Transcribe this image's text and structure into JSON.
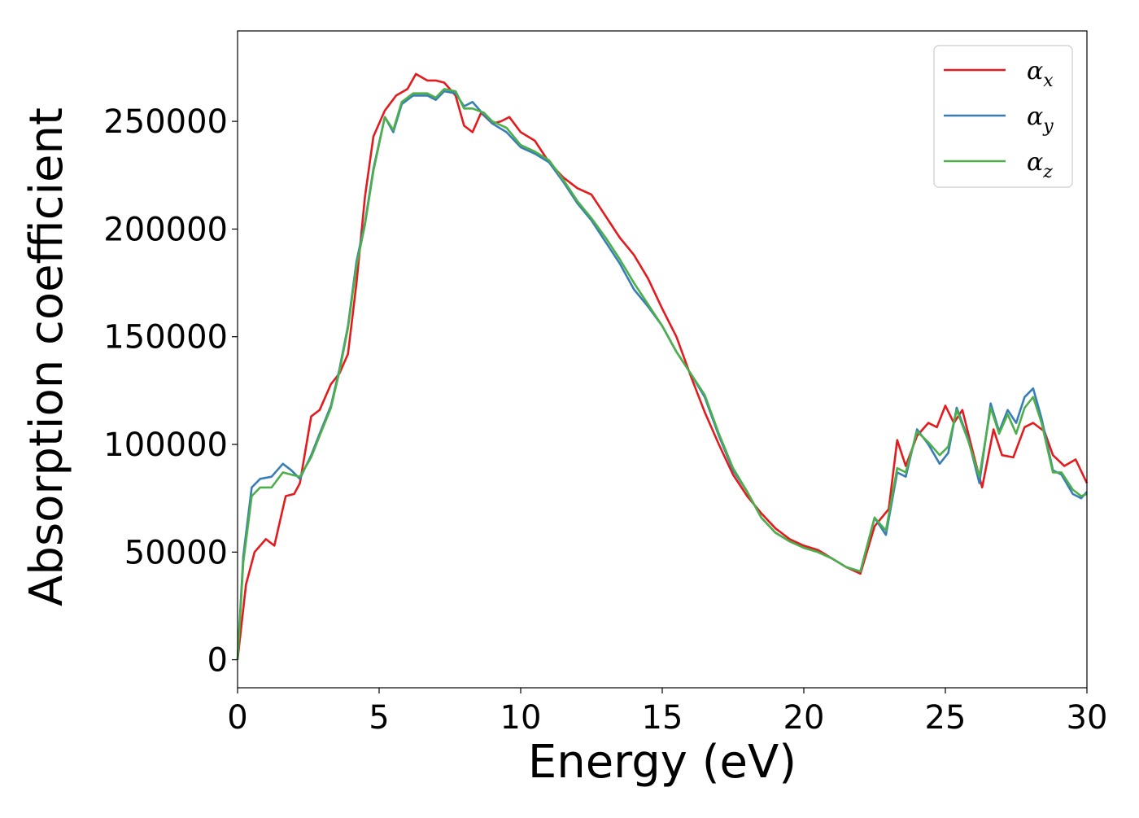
{
  "chart_data": {
    "type": "line",
    "xlabel": "Energy (eV)",
    "ylabel": "Absorption coefficient",
    "xlim": [
      0,
      30
    ],
    "ylim": [
      -13000,
      292000
    ],
    "xticks": [
      0,
      5,
      10,
      15,
      20,
      25,
      30
    ],
    "yticks": [
      0,
      50000,
      100000,
      150000,
      200000,
      250000
    ],
    "grid": false,
    "legend_position": "top-right",
    "series": [
      {
        "name": "αx",
        "symbol": "α",
        "subscript": "x",
        "color": "#e41a1c",
        "points": [
          [
            0,
            0
          ],
          [
            0.3,
            35000
          ],
          [
            0.6,
            50000
          ],
          [
            1.0,
            56000
          ],
          [
            1.3,
            53000
          ],
          [
            1.7,
            76000
          ],
          [
            2.0,
            77000
          ],
          [
            2.2,
            82000
          ],
          [
            2.6,
            113000
          ],
          [
            2.9,
            116000
          ],
          [
            3.3,
            128000
          ],
          [
            3.6,
            133000
          ],
          [
            3.9,
            142000
          ],
          [
            4.2,
            175000
          ],
          [
            4.5,
            215000
          ],
          [
            4.8,
            243000
          ],
          [
            5.2,
            255000
          ],
          [
            5.6,
            262000
          ],
          [
            6.0,
            265000
          ],
          [
            6.3,
            272000
          ],
          [
            6.7,
            269000
          ],
          [
            7.0,
            269000
          ],
          [
            7.3,
            268000
          ],
          [
            7.7,
            262000
          ],
          [
            8.0,
            248000
          ],
          [
            8.3,
            245000
          ],
          [
            8.6,
            254000
          ],
          [
            9.0,
            249000
          ],
          [
            9.3,
            250000
          ],
          [
            9.6,
            252000
          ],
          [
            10.0,
            245000
          ],
          [
            10.5,
            241000
          ],
          [
            11.0,
            231000
          ],
          [
            11.5,
            224000
          ],
          [
            12.0,
            219000
          ],
          [
            12.5,
            216000
          ],
          [
            13.0,
            206000
          ],
          [
            13.5,
            196000
          ],
          [
            14.0,
            188000
          ],
          [
            14.5,
            177000
          ],
          [
            15.0,
            163000
          ],
          [
            15.5,
            150000
          ],
          [
            16.0,
            132000
          ],
          [
            16.5,
            115000
          ],
          [
            17.0,
            100000
          ],
          [
            17.5,
            86000
          ],
          [
            18.0,
            76000
          ],
          [
            18.5,
            68000
          ],
          [
            19.0,
            61000
          ],
          [
            19.5,
            56000
          ],
          [
            20.0,
            53000
          ],
          [
            20.5,
            51000
          ],
          [
            21.0,
            47000
          ],
          [
            21.5,
            43000
          ],
          [
            22.0,
            40000
          ],
          [
            22.5,
            62000
          ],
          [
            23.0,
            70000
          ],
          [
            23.3,
            102000
          ],
          [
            23.6,
            90000
          ],
          [
            24.0,
            104000
          ],
          [
            24.4,
            110000
          ],
          [
            24.7,
            108000
          ],
          [
            25.0,
            118000
          ],
          [
            25.3,
            110000
          ],
          [
            25.6,
            116000
          ],
          [
            26.0,
            95000
          ],
          [
            26.3,
            80000
          ],
          [
            26.7,
            107000
          ],
          [
            27.0,
            95000
          ],
          [
            27.4,
            94000
          ],
          [
            27.8,
            108000
          ],
          [
            28.1,
            110000
          ],
          [
            28.5,
            106000
          ],
          [
            28.8,
            95000
          ],
          [
            29.2,
            90000
          ],
          [
            29.6,
            93000
          ],
          [
            30.0,
            82000
          ]
        ]
      },
      {
        "name": "αy",
        "symbol": "α",
        "subscript": "y",
        "color": "#377eb8",
        "points": [
          [
            0,
            0
          ],
          [
            0.2,
            48000
          ],
          [
            0.5,
            80000
          ],
          [
            0.8,
            84000
          ],
          [
            1.2,
            85000
          ],
          [
            1.6,
            91000
          ],
          [
            1.9,
            88000
          ],
          [
            2.2,
            84000
          ],
          [
            2.6,
            95000
          ],
          [
            2.9,
            105000
          ],
          [
            3.3,
            118000
          ],
          [
            3.6,
            135000
          ],
          [
            3.9,
            155000
          ],
          [
            4.2,
            185000
          ],
          [
            4.5,
            203000
          ],
          [
            4.8,
            228000
          ],
          [
            5.2,
            252000
          ],
          [
            5.5,
            245000
          ],
          [
            5.8,
            258000
          ],
          [
            6.2,
            262000
          ],
          [
            6.7,
            262000
          ],
          [
            7.0,
            260000
          ],
          [
            7.3,
            264000
          ],
          [
            7.7,
            263000
          ],
          [
            8.0,
            257000
          ],
          [
            8.3,
            259000
          ],
          [
            8.7,
            253000
          ],
          [
            9.0,
            249000
          ],
          [
            9.5,
            245000
          ],
          [
            10.0,
            238000
          ],
          [
            10.5,
            235000
          ],
          [
            11.0,
            231000
          ],
          [
            11.5,
            222000
          ],
          [
            12.0,
            212000
          ],
          [
            12.5,
            204000
          ],
          [
            13.0,
            194000
          ],
          [
            13.5,
            184000
          ],
          [
            14.0,
            172000
          ],
          [
            14.5,
            164000
          ],
          [
            15.0,
            155000
          ],
          [
            15.5,
            143000
          ],
          [
            16.0,
            133000
          ],
          [
            16.5,
            122000
          ],
          [
            17.0,
            104000
          ],
          [
            17.5,
            88000
          ],
          [
            18.0,
            78000
          ],
          [
            18.5,
            66000
          ],
          [
            19.0,
            59000
          ],
          [
            19.5,
            55000
          ],
          [
            20.0,
            52000
          ],
          [
            20.5,
            50000
          ],
          [
            21.0,
            47000
          ],
          [
            21.5,
            43000
          ],
          [
            22.0,
            41000
          ],
          [
            22.5,
            66000
          ],
          [
            22.9,
            58000
          ],
          [
            23.3,
            87000
          ],
          [
            23.6,
            85000
          ],
          [
            24.0,
            107000
          ],
          [
            24.4,
            100000
          ],
          [
            24.8,
            91000
          ],
          [
            25.1,
            96000
          ],
          [
            25.4,
            117000
          ],
          [
            25.8,
            103000
          ],
          [
            26.2,
            82000
          ],
          [
            26.6,
            119000
          ],
          [
            26.9,
            106000
          ],
          [
            27.2,
            116000
          ],
          [
            27.5,
            110000
          ],
          [
            27.8,
            122000
          ],
          [
            28.1,
            126000
          ],
          [
            28.4,
            112000
          ],
          [
            28.8,
            88000
          ],
          [
            29.1,
            86000
          ],
          [
            29.5,
            77000
          ],
          [
            29.8,
            75000
          ],
          [
            30.0,
            78000
          ]
        ]
      },
      {
        "name": "αz",
        "symbol": "α",
        "subscript": "z",
        "color": "#4daf4a",
        "points": [
          [
            0,
            0
          ],
          [
            0.2,
            45000
          ],
          [
            0.5,
            76000
          ],
          [
            0.8,
            80000
          ],
          [
            1.2,
            80000
          ],
          [
            1.6,
            87000
          ],
          [
            1.9,
            86000
          ],
          [
            2.2,
            85000
          ],
          [
            2.6,
            94000
          ],
          [
            2.9,
            104000
          ],
          [
            3.3,
            117000
          ],
          [
            3.6,
            134000
          ],
          [
            3.9,
            154000
          ],
          [
            4.2,
            183000
          ],
          [
            4.5,
            202000
          ],
          [
            4.8,
            227000
          ],
          [
            5.2,
            252000
          ],
          [
            5.5,
            246000
          ],
          [
            5.8,
            259000
          ],
          [
            6.2,
            263000
          ],
          [
            6.7,
            263000
          ],
          [
            7.0,
            261000
          ],
          [
            7.3,
            265000
          ],
          [
            7.7,
            264000
          ],
          [
            8.0,
            256000
          ],
          [
            8.3,
            256000
          ],
          [
            8.7,
            254000
          ],
          [
            9.0,
            250000
          ],
          [
            9.5,
            247000
          ],
          [
            10.0,
            239000
          ],
          [
            10.5,
            236000
          ],
          [
            11.0,
            232000
          ],
          [
            11.5,
            223000
          ],
          [
            12.0,
            213000
          ],
          [
            12.5,
            205000
          ],
          [
            13.0,
            196000
          ],
          [
            13.5,
            186000
          ],
          [
            14.0,
            175000
          ],
          [
            14.5,
            165000
          ],
          [
            15.0,
            155000
          ],
          [
            15.5,
            143000
          ],
          [
            16.0,
            133000
          ],
          [
            16.5,
            123000
          ],
          [
            17.0,
            105000
          ],
          [
            17.5,
            89000
          ],
          [
            18.0,
            78000
          ],
          [
            18.5,
            66000
          ],
          [
            19.0,
            59000
          ],
          [
            19.5,
            55000
          ],
          [
            20.0,
            52000
          ],
          [
            20.5,
            50000
          ],
          [
            21.0,
            47000
          ],
          [
            21.5,
            43000
          ],
          [
            22.0,
            41000
          ],
          [
            22.5,
            66000
          ],
          [
            22.9,
            60000
          ],
          [
            23.3,
            89000
          ],
          [
            23.6,
            87000
          ],
          [
            24.0,
            106000
          ],
          [
            24.4,
            101000
          ],
          [
            24.8,
            95000
          ],
          [
            25.1,
            99000
          ],
          [
            25.4,
            116000
          ],
          [
            25.8,
            102000
          ],
          [
            26.2,
            85000
          ],
          [
            26.6,
            117000
          ],
          [
            26.9,
            105000
          ],
          [
            27.2,
            114000
          ],
          [
            27.5,
            105000
          ],
          [
            27.8,
            117000
          ],
          [
            28.1,
            122000
          ],
          [
            28.4,
            110000
          ],
          [
            28.8,
            87000
          ],
          [
            29.1,
            87000
          ],
          [
            29.5,
            79000
          ],
          [
            29.8,
            76000
          ],
          [
            30.0,
            77000
          ]
        ]
      }
    ]
  }
}
